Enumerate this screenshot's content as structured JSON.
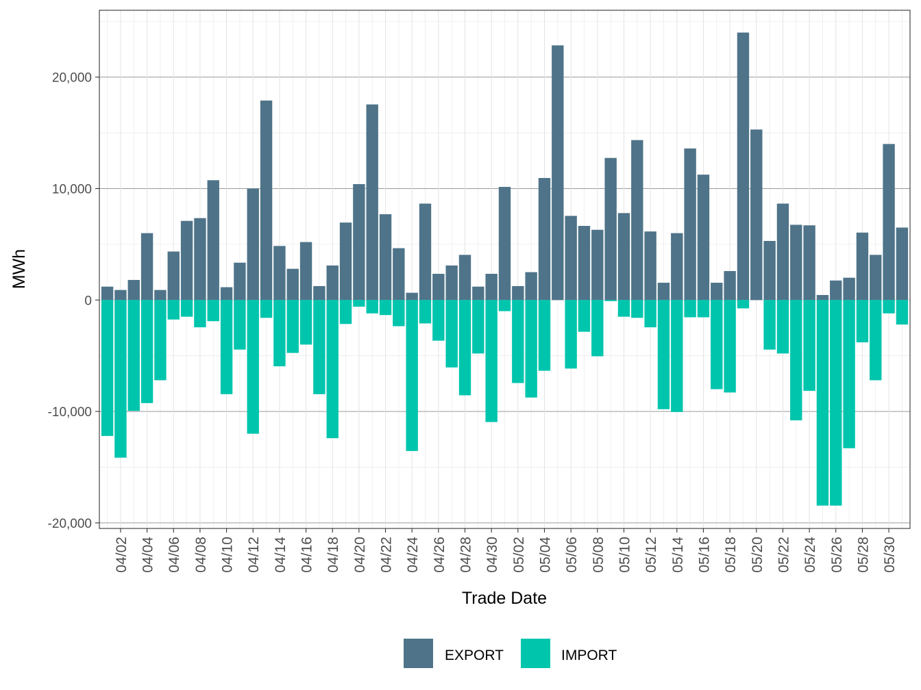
{
  "chart_data": {
    "type": "bar",
    "stacked": "diverging",
    "xlabel": "Trade Date",
    "ylabel": "MWh",
    "ylim": [
      -20500,
      26000
    ],
    "yticks": [
      -20000,
      -10000,
      0,
      10000,
      20000
    ],
    "ytick_labels": [
      "-20,000",
      "-10,000",
      "0",
      "10,000",
      "20,000"
    ],
    "xtick_labels": [
      "04/02",
      "04/04",
      "04/06",
      "04/08",
      "04/10",
      "04/12",
      "04/14",
      "04/16",
      "04/18",
      "04/20",
      "04/22",
      "04/24",
      "04/26",
      "04/28",
      "04/30",
      "05/02",
      "05/04",
      "05/06",
      "05/08",
      "05/10",
      "05/12",
      "05/14",
      "05/16",
      "05/18",
      "05/20",
      "05/22",
      "05/24",
      "05/26",
      "05/28",
      "05/30"
    ],
    "categories": [
      "04/01",
      "04/02",
      "04/03",
      "04/04",
      "04/05",
      "04/06",
      "04/07",
      "04/08",
      "04/09",
      "04/10",
      "04/11",
      "04/12",
      "04/13",
      "04/14",
      "04/15",
      "04/16",
      "04/17",
      "04/18",
      "04/19",
      "04/20",
      "04/21",
      "04/22",
      "04/23",
      "04/24",
      "04/25",
      "04/26",
      "04/27",
      "04/28",
      "04/29",
      "04/30",
      "05/01",
      "05/02",
      "05/03",
      "05/04",
      "05/05",
      "05/06",
      "05/07",
      "05/08",
      "05/09",
      "05/10",
      "05/11",
      "05/12",
      "05/13",
      "05/14",
      "05/15",
      "05/16",
      "05/17",
      "05/18",
      "05/19",
      "05/20",
      "05/21",
      "05/22",
      "05/23",
      "05/24",
      "05/25",
      "05/26",
      "05/27",
      "05/28",
      "05/29",
      "05/30",
      "05/31"
    ],
    "grid": true,
    "legend_position": "bottom",
    "series": [
      {
        "name": "EXPORT",
        "color": "#4f7489",
        "values": [
          1200,
          900,
          1800,
          6000,
          900,
          4350,
          7100,
          7350,
          10750,
          1150,
          3350,
          10000,
          17900,
          4850,
          2800,
          5200,
          1250,
          3100,
          6950,
          10400,
          17550,
          7700,
          4650,
          650,
          8650,
          2350,
          3100,
          4050,
          1200,
          2350,
          10150,
          1250,
          2500,
          10950,
          22850,
          7550,
          6650,
          6300,
          12750,
          7800,
          14350,
          6150,
          1550,
          6000,
          13600,
          11250,
          1550,
          2600,
          24000,
          15300,
          5300,
          8650,
          6750,
          6700,
          450,
          1750,
          2000,
          6050,
          4050,
          14000,
          6500
        ]
      },
      {
        "name": "IMPORT",
        "color": "#00c5ad",
        "values": [
          -12200,
          -14150,
          -9950,
          -9250,
          -7200,
          -1750,
          -1500,
          -2450,
          -1900,
          -8450,
          -4450,
          -12000,
          -1600,
          -5950,
          -4750,
          -4000,
          -8450,
          -12400,
          -2150,
          -600,
          -1200,
          -1350,
          -2350,
          -13550,
          -2100,
          -3650,
          -6050,
          -8550,
          -4800,
          -10950,
          -1000,
          -7450,
          -8750,
          -6350,
          0,
          -6150,
          -2850,
          -5050,
          -100,
          -1500,
          -1600,
          -2450,
          -9800,
          -10050,
          -1550,
          -1550,
          -8000,
          -8300,
          -750,
          0,
          -4450,
          -4800,
          -10800,
          -8150,
          -18450,
          -18450,
          -13300,
          -3800,
          -7200,
          -1200,
          -2200
        ]
      }
    ]
  }
}
